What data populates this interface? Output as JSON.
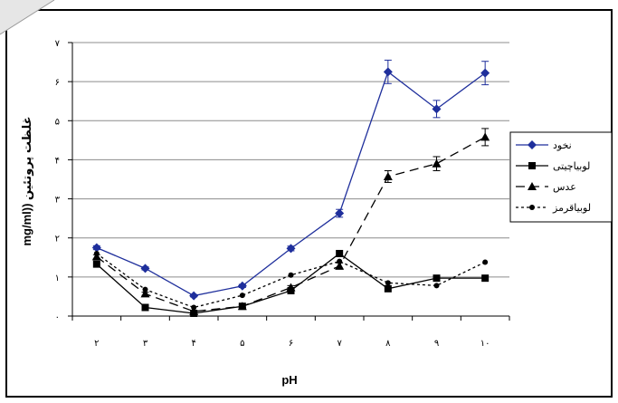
{
  "chart_data": {
    "type": "line",
    "xlabel": "pH",
    "ylabel": "mg/ml)) غلظت پروتئین",
    "x": [
      2,
      3,
      4,
      5,
      6,
      7,
      8,
      9,
      10
    ],
    "x_tick_labels": [
      "۲",
      "۳",
      "۴",
      "۵",
      "۶",
      "۷",
      "۸",
      "۹",
      "۱۰"
    ],
    "ylim": [
      0,
      7
    ],
    "y_tick_values": [
      0,
      1,
      2,
      3,
      4,
      5,
      6,
      7
    ],
    "y_tick_labels": [
      "۰",
      "۱",
      "۲",
      "۳",
      "۴",
      "۵",
      "۶",
      "۷"
    ],
    "grid": "horizontal",
    "legend_position": "right",
    "series": [
      {
        "name": "نخود",
        "values": [
          1.75,
          1.22,
          0.52,
          0.77,
          1.73,
          2.63,
          6.25,
          5.3,
          6.22
        ],
        "errors": [
          0.05,
          0.04,
          0.03,
          0.04,
          0.06,
          0.1,
          0.3,
          0.22,
          0.3
        ],
        "color": "#1f2f9c",
        "marker": "diamond",
        "dash": "solid"
      },
      {
        "name": "لوبياچيتی",
        "values": [
          1.33,
          0.22,
          0.07,
          0.25,
          0.65,
          1.6,
          0.7,
          0.97,
          0.97
        ],
        "errors": [
          0,
          0,
          0,
          0,
          0,
          0,
          0,
          0,
          0
        ],
        "color": "#000000",
        "marker": "square",
        "dash": "solid"
      },
      {
        "name": "عدس",
        "values": [
          1.52,
          0.57,
          0.12,
          0.25,
          0.73,
          1.28,
          3.57,
          3.9,
          4.58
        ],
        "errors": [
          0.05,
          0.04,
          0.02,
          0.03,
          0.05,
          0.08,
          0.15,
          0.18,
          0.22
        ],
        "color": "#000000",
        "marker": "triangle",
        "dash": "longdash"
      },
      {
        "name": "لوبياقرمز",
        "values": [
          1.6,
          0.68,
          0.22,
          0.53,
          1.05,
          1.4,
          0.85,
          0.78,
          1.38
        ],
        "errors": [
          0,
          0,
          0,
          0,
          0,
          0,
          0,
          0,
          0
        ],
        "color": "#000000",
        "marker": "circle",
        "dash": "dotted"
      }
    ]
  }
}
